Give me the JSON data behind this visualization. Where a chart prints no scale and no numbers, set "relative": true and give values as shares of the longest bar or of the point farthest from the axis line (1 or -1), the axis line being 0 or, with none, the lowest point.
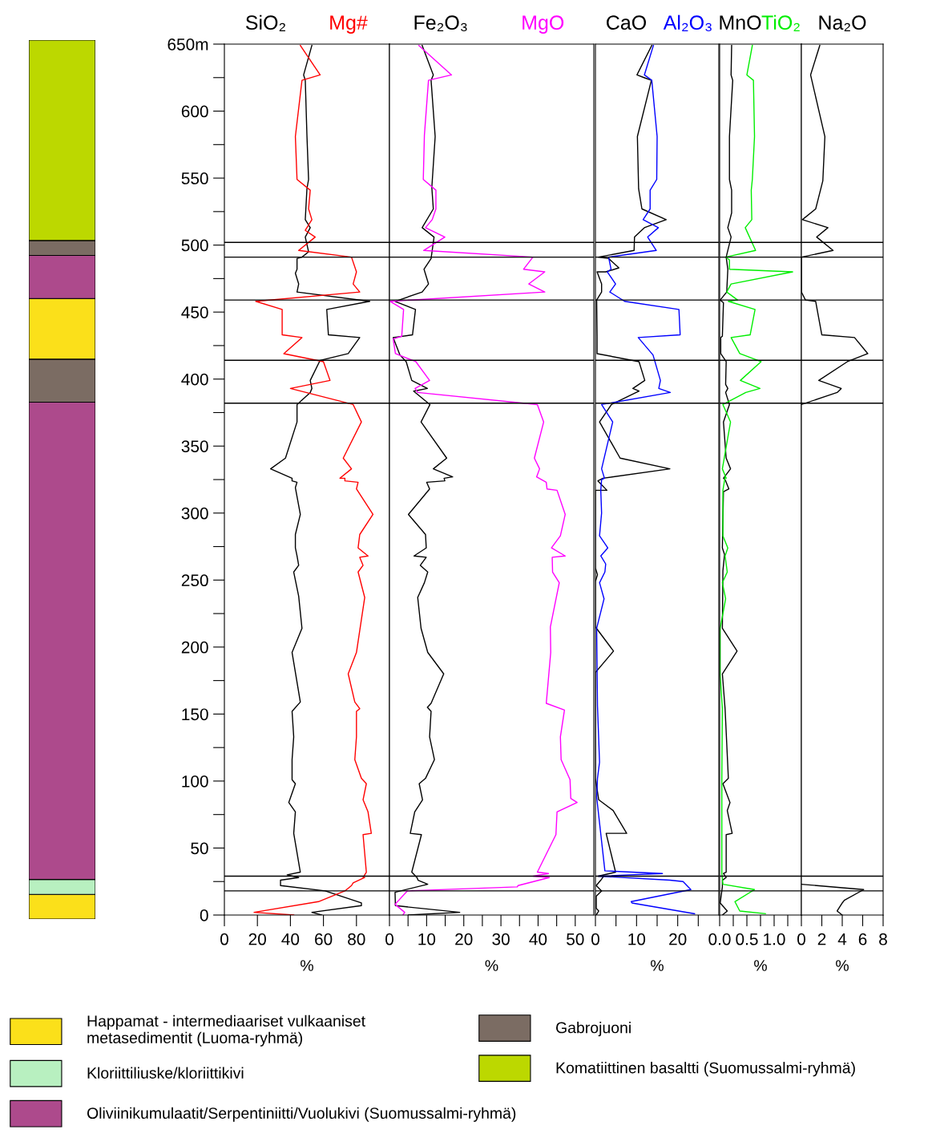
{
  "chart_data": [
    {
      "type": "bar",
      "stacked": true,
      "relative": true,
      "categories": [
        null
      ],
      "tick_labels": false,
      "legend": "bottom",
      "series": [
        {
          "name": "Happamat - intermediaariset vulkaaniset\nmetasedimentit (Luoma-ryhmä)",
          "color": "#fbe01a",
          "values": [
            0.028
          ]
        },
        {
          "name": "Kloriittiliuske/kloriittikivi",
          "color": "#b8f0c0",
          "values": [
            0.017
          ]
        },
        {
          "name": "Oliviinikumulaatit/Serpentiniitti/Vuolukivi (Suomussalmi-ryhmä)",
          "color": "#ad4a8c",
          "values": [
            0.543
          ]
        },
        {
          "name": "Gabrojuoni",
          "color": "#7b6c63",
          "values": [
            0.049
          ]
        },
        {
          "color": "#fbe01a",
          "values": [
            0.069
          ]
        },
        {
          "color": "#ad4a8c",
          "values": [
            0.049
          ]
        },
        {
          "color": "#7b6c63",
          "values": [
            0.017
          ]
        },
        {
          "name": "Komatiittinen basaltti (Suomussalmi-ryhmä)",
          "color": "#bcd800",
          "values": [
            0.228
          ]
        }
      ]
    },
    {
      "type": "line",
      "xlabel": "%",
      "xlim": [
        0,
        100
      ],
      "ylim": [
        0,
        650
      ],
      "xticks": [
        0,
        20,
        40,
        60,
        80
      ],
      "yticks": [
        0,
        {
          "value": 25,
          "label": null
        },
        50,
        {
          "value": 75,
          "label": null
        },
        100,
        {
          "value": 125,
          "label": null
        },
        150,
        {
          "value": 175,
          "label": null
        },
        200,
        {
          "value": 225,
          "label": null
        },
        250,
        {
          "value": 275,
          "label": null
        },
        300,
        {
          "value": 325,
          "label": null
        },
        350,
        {
          "value": 375,
          "label": null
        },
        400,
        {
          "value": 425,
          "label": null
        },
        450,
        {
          "value": 475,
          "label": null
        },
        500,
        {
          "value": 525,
          "label": null
        },
        550,
        {
          "value": 575,
          "label": null
        },
        600,
        {
          "value": 625,
          "label": null
        },
        {
          "value": 650,
          "label": "650m"
        }
      ],
      "ref_lines": [
        {
          "axis": "y",
          "value": 18,
          "color": "#000000"
        },
        {
          "axis": "y",
          "value": 29,
          "color": "#000000"
        },
        {
          "axis": "y",
          "value": 382,
          "color": "#000000"
        },
        {
          "axis": "y",
          "value": 414,
          "color": "#000000"
        },
        {
          "axis": "y",
          "value": 459,
          "color": "#000000"
        },
        {
          "axis": "y",
          "value": 491,
          "color": "#000000"
        },
        {
          "axis": "y",
          "value": 502,
          "color": "#000000"
        }
      ],
      "series": [
        {
          "name": "SiO₂",
          "color": "#000000",
          "x": [
            53,
            48,
            49,
            50,
            51,
            50,
            49,
            52,
            49,
            51,
            47,
            44,
            44,
            43,
            45,
            44,
            88,
            62,
            63,
            82,
            75,
            58,
            52,
            53,
            52,
            44,
            44,
            37,
            28,
            41,
            41,
            44,
            43,
            46,
            43,
            43,
            44,
            45,
            42,
            45,
            47,
            41,
            46,
            41,
            42,
            41,
            41,
            43,
            39,
            43,
            42,
            42,
            46,
            38,
            45,
            34,
            34,
            61,
            83,
            83,
            53,
            59
          ],
          "values": [
            649,
            627,
            623,
            582,
            549,
            542,
            519,
            513,
            506,
            495,
            491,
            490,
            482,
            479,
            471,
            465,
            458,
            452,
            433,
            431,
            419,
            414,
            399,
            393,
            390,
            381,
            368,
            341,
            333,
            326,
            324,
            323,
            319,
            299,
            284,
            274,
            268,
            261,
            256,
            238,
            214,
            196,
            159,
            152,
            133,
            116,
            101,
            98,
            84,
            77,
            61,
            61,
            32,
            30,
            28,
            26,
            22,
            18,
            9,
            7,
            2,
            0
          ]
        },
        {
          "name": "Mg#",
          "color": "#ff0000",
          "x": [
            46,
            58,
            47,
            43,
            44,
            52,
            51,
            53,
            49,
            55,
            45,
            77,
            80,
            78,
            82,
            19,
            35,
            35,
            47,
            36,
            60,
            64,
            40,
            78,
            83,
            72,
            77,
            70,
            73,
            73,
            81,
            80,
            90,
            82,
            81,
            87,
            82,
            84,
            81,
            85,
            80,
            75,
            79,
            82,
            80,
            80,
            79,
            83,
            86,
            84,
            87,
            89,
            84,
            86,
            84,
            85,
            78,
            77,
            73,
            57,
            18,
            42
          ],
          "values": [
            649,
            627,
            623,
            581,
            549,
            541,
            527,
            519,
            511,
            506,
            496,
            491,
            480,
            471,
            465,
            458,
            452,
            433,
            431,
            419,
            413,
            399,
            393,
            381,
            368,
            341,
            333,
            326,
            326,
            324,
            323,
            318,
            299,
            284,
            274,
            268,
            267,
            261,
            256,
            237,
            196,
            180,
            159,
            154,
            152,
            133,
            116,
            102,
            98,
            86,
            77,
            61,
            60,
            32,
            28,
            28,
            24,
            22,
            18,
            10,
            2,
            0
          ]
        }
      ]
    },
    {
      "type": "line",
      "xlabel": "%",
      "xlim": [
        0,
        55
      ],
      "ylim": [
        0,
        650
      ],
      "tick_labels": "x",
      "xticks": [
        0,
        {
          "value": 5,
          "label": null
        },
        10,
        {
          "value": 15,
          "label": null
        },
        20,
        {
          "value": 25,
          "label": null
        },
        30,
        {
          "value": 35,
          "label": null
        },
        40,
        {
          "value": 45,
          "label": null
        },
        50
      ],
      "ref_lines": [
        {
          "axis": "y",
          "value": 18,
          "color": "#000000"
        },
        {
          "axis": "y",
          "value": 29,
          "color": "#000000"
        },
        {
          "axis": "y",
          "value": 382,
          "color": "#000000"
        },
        {
          "axis": "y",
          "value": 414,
          "color": "#000000"
        },
        {
          "axis": "y",
          "value": 459,
          "color": "#000000"
        },
        {
          "axis": "y",
          "value": 491,
          "color": "#000000"
        },
        {
          "axis": "y",
          "value": 502,
          "color": "#000000"
        }
      ],
      "series": [
        {
          "name": "Fe₂O₃",
          "color": "#000000",
          "x": [
            8.8,
            11.8,
            11.2,
            12.3,
            11.4,
            11.8,
            8.8,
            12.0,
            11.2,
            9.3,
            10.5,
            8.8,
            1.5,
            7.0,
            6.2,
            1.0,
            2.8,
            4.5,
            6.0,
            10.2,
            6.5,
            10.9,
            8.5,
            15.4,
            11.8,
            17.0,
            14.7,
            14.9,
            10.0,
            10.8,
            5.1,
            9.7,
            9.9,
            6.6,
            9.9,
            8.3,
            10.3,
            9.4,
            7.6,
            8.5,
            10.3,
            14.6,
            11.2,
            10.2,
            11.2,
            10.8,
            12.1,
            9.7,
            8.0,
            8.9,
            6.8,
            5.6,
            8.6,
            6.0,
            7.4,
            7.7,
            10.3,
            1.5,
            1.6,
            18.9,
            5.1
          ],
          "values": [
            649,
            627,
            623,
            581,
            543,
            527,
            513,
            506,
            490,
            482,
            471,
            465,
            458,
            452,
            433,
            431,
            418,
            413,
            399,
            393,
            391,
            381,
            368,
            341,
            333,
            327,
            326,
            324,
            323,
            318,
            299,
            284,
            274,
            268,
            267,
            261,
            256,
            248,
            237,
            214,
            196,
            180,
            158,
            155,
            152,
            133,
            116,
            102,
            98,
            86,
            77,
            61,
            60,
            32,
            28,
            26,
            23,
            17,
            7,
            2,
            0
          ]
        },
        {
          "name": "MgO",
          "color": "#ff00ff",
          "x": [
            7.9,
            16.7,
            10.5,
            9.4,
            9.1,
            12.5,
            12.5,
            11.5,
            9.7,
            14.9,
            9.2,
            38.6,
            36.1,
            41.8,
            37.5,
            41.8,
            0.2,
            3.8,
            3.3,
            1.0,
            1.6,
            7.1,
            10.8,
            6.9,
            7.6,
            39.8,
            41.5,
            39.0,
            40.4,
            39.6,
            42.2,
            42.4,
            45.1,
            47.3,
            46.0,
            43.6,
            47.3,
            43.8,
            43.9,
            45.7,
            43.3,
            43.4,
            42.2,
            47.1,
            46.0,
            46.2,
            48.6,
            48.8,
            50.5,
            45.1,
            44.8,
            39.8,
            42.8,
            38.7,
            43.0,
            34.6,
            34.4,
            4.8,
            1.5,
            4.1,
            3.6
          ],
          "values": [
            649,
            627,
            623,
            582,
            549,
            541,
            527,
            519,
            513,
            506,
            496,
            491,
            482,
            480,
            471,
            465,
            458,
            452,
            432,
            430,
            419,
            413,
            399,
            393,
            390,
            381,
            368,
            341,
            333,
            327,
            323,
            318,
            317,
            299,
            283,
            274,
            268,
            267,
            256,
            248,
            215,
            196,
            158,
            153,
            133,
            116,
            101,
            87,
            84,
            77,
            60,
            32,
            31,
            29,
            28,
            22,
            21,
            18,
            8,
            2,
            0
          ]
        }
      ]
    },
    {
      "type": "line",
      "xlabel": "%",
      "xlim": [
        0,
        30
      ],
      "ylim": [
        0,
        650
      ],
      "tick_labels": "x",
      "xticks": [
        0,
        {
          "value": 5,
          "label": null
        },
        10,
        {
          "value": 15,
          "label": null
        },
        20,
        {
          "value": 25,
          "label": null
        }
      ],
      "ref_lines": [
        {
          "axis": "y",
          "value": 18,
          "color": "#000000"
        },
        {
          "axis": "y",
          "value": 29,
          "color": "#000000"
        },
        {
          "axis": "y",
          "value": 382,
          "color": "#000000"
        },
        {
          "axis": "y",
          "value": 414,
          "color": "#000000"
        },
        {
          "axis": "y",
          "value": 459,
          "color": "#000000"
        },
        {
          "axis": "y",
          "value": 491,
          "color": "#000000"
        },
        {
          "axis": "y",
          "value": 502,
          "color": "#000000"
        }
      ],
      "series": [
        {
          "name": "CaO",
          "color": "#000000",
          "x": [
            13.7,
            10.1,
            11.8,
            13.6,
            10.2,
            10.5,
            11.3,
            17.2,
            11.9,
            9.5,
            9.4,
            0.7,
            3.2,
            5.7,
            2.5,
            0.4,
            1.5,
            1.5,
            0.3,
            0.4,
            0.4,
            10.6,
            12.0,
            9.1,
            10.6,
            3.9,
            1.0,
            6.0,
            18.1,
            1.8,
            0.6,
            2.8,
            0,
            0,
            0.5,
            0,
            0,
            4.4,
            0,
            0,
            0.8,
            4.3,
            7.6,
            2.6,
            4.9,
            0.7,
            2.0,
            1.3,
            0.2,
            1.5,
            0.2,
            0.2,
            0.8,
            0.2
          ],
          "values": [
            649,
            627,
            625,
            623,
            581,
            542,
            527,
            519,
            513,
            506,
            496,
            491,
            490,
            483,
            480,
            480,
            471,
            465,
            459,
            432,
            419,
            413,
            399,
            393,
            391,
            381,
            368,
            341,
            333,
            326,
            324,
            317,
            317,
            259,
            254,
            249,
            215,
            197,
            181,
            102,
            86,
            78,
            61,
            61,
            32,
            29,
            29,
            26,
            22,
            18,
            14,
            5,
            3,
            0
          ]
        },
        {
          "name": "Al₂O₃",
          "color": "#0000ff",
          "x": [
            14.1,
            11.9,
            13.7,
            15.0,
            14.9,
            13.3,
            13.3,
            11.6,
            15.3,
            12.7,
            14.8,
            3.2,
            3.8,
            2.9,
            4.9,
            3.5,
            7.1,
            20.3,
            20.6,
            10.4,
            14.0,
            15.8,
            15.4,
            18.2,
            1.5,
            4.2,
            1.5,
            2.2,
            1.5,
            1.3,
            1.5,
            1.0,
            3.0,
            1.3,
            2.5,
            2.3,
            1.0,
            2.1,
            0.3,
            0.5,
            1.0,
            0.5,
            0.3,
            2.3,
            16.3,
            0.7,
            18.1,
            21.3,
            23.2,
            8.7,
            8.9,
            24.1
          ],
          "values": [
            649,
            627,
            623,
            581,
            549,
            541,
            527,
            519,
            513,
            506,
            496,
            491,
            482,
            480,
            471,
            465,
            458,
            452,
            433,
            431,
            418,
            399,
            393,
            390,
            381,
            368,
            333,
            326,
            325,
            317,
            300,
            283,
            274,
            268,
            262,
            256,
            248,
            236,
            214,
            156,
            114,
            102,
            88,
            33,
            31,
            29,
            26,
            25,
            19,
            10,
            9,
            1
          ]
        }
      ]
    },
    {
      "type": "line",
      "xlabel": "%",
      "xlim": [
        0,
        1.5
      ],
      "ylim": [
        0,
        650
      ],
      "tick_labels": "x",
      "xticks": [
        {
          "value": 0,
          "label": "0.0"
        },
        {
          "value": 0.25,
          "label": null
        },
        0.5,
        {
          "value": 0.75,
          "label": null
        },
        {
          "value": 1,
          "label": "1.0"
        },
        {
          "value": 1.25,
          "label": null
        }
      ],
      "ref_lines": [
        {
          "axis": "y",
          "value": 18,
          "color": "#000000"
        },
        {
          "axis": "y",
          "value": 29,
          "color": "#000000"
        },
        {
          "axis": "y",
          "value": 382,
          "color": "#000000"
        },
        {
          "axis": "y",
          "value": 414,
          "color": "#000000"
        },
        {
          "axis": "y",
          "value": 459,
          "color": "#000000"
        },
        {
          "axis": "y",
          "value": 491,
          "color": "#000000"
        },
        {
          "axis": "y",
          "value": 502,
          "color": "#000000"
        }
      ],
      "series": [
        {
          "name": "MnO",
          "color": "#000000",
          "x": [
            0.22,
            0.21,
            0.24,
            0.18,
            0.18,
            0.22,
            0.22,
            0.15,
            0.21,
            0.12,
            0.15,
            0.13,
            0.01,
            0.07,
            0.05,
            0.02,
            0.02,
            0.12,
            0.11,
            0.15,
            0.11,
            0.18,
            0.07,
            0.12,
            0.2,
            0.07,
            0.1,
            0.17,
            0.07,
            0.05,
            0.09,
            0.06,
            0.05,
            0.32,
            0.05,
            0.1,
            0.16,
            0.06,
            0.19,
            0.14,
            0.23,
            0.12,
            0.12,
            0.07,
            0.12,
            0.05,
            0.05,
            0.01,
            0.14,
            0.05
          ],
          "values": [
            649,
            627,
            623,
            581,
            549,
            541,
            524,
            513,
            506,
            491,
            482,
            465,
            459,
            457,
            432,
            431,
            419,
            413,
            396,
            393,
            390,
            381,
            368,
            341,
            333,
            326,
            325,
            318,
            316,
            274,
            269,
            257,
            214,
            197,
            180,
            154,
            102,
            98,
            84,
            78,
            61,
            60,
            32,
            31,
            28,
            26,
            21,
            9,
            3,
            0
          ]
        },
        {
          "name": "TiO₂",
          "color": "#00ee00",
          "x": [
            0.6,
            0.5,
            0.62,
            0.64,
            0.6,
            0.58,
            0.59,
            0.47,
            0.66,
            0.11,
            0.18,
            0.18,
            1.34,
            0.21,
            0.13,
            0.33,
            0.16,
            0.65,
            0.56,
            0.21,
            0.37,
            0.76,
            0.38,
            0.74,
            0.48,
            0.06,
            0.2,
            0.05,
            0.12,
            0.1,
            0.06,
            0.06,
            0.15,
            0.1,
            0.14,
            0.05,
            0.11,
            0.01,
            0.01,
            0.05,
            0.04,
            0.04,
            0.06,
            0.64,
            0.28,
            0.37,
            0.84
          ],
          "values": [
            649,
            627,
            623,
            581,
            549,
            541,
            519,
            513,
            496,
            491,
            489,
            482,
            480,
            471,
            465,
            459,
            458,
            452,
            433,
            431,
            419,
            413,
            399,
            393,
            390,
            381,
            368,
            333,
            326,
            327,
            317,
            283,
            274,
            268,
            256,
            248,
            236,
            214,
            179,
            154,
            102,
            31,
            23,
            19,
            10,
            3,
            1
          ]
        }
      ]
    },
    {
      "type": "line",
      "xlabel": "%",
      "xlim": [
        0,
        8
      ],
      "ylim": [
        0,
        650
      ],
      "tick_labels": "x",
      "xticks": [
        0,
        2,
        4,
        6,
        8
      ],
      "ref_lines": [
        {
          "axis": "y",
          "value": 18,
          "color": "#000000"
        },
        {
          "axis": "y",
          "value": 29,
          "color": "#000000"
        },
        {
          "axis": "y",
          "value": 382,
          "color": "#000000"
        },
        {
          "axis": "y",
          "value": 414,
          "color": "#000000"
        },
        {
          "axis": "y",
          "value": 459,
          "color": "#000000"
        },
        {
          "axis": "y",
          "value": 491,
          "color": "#000000"
        },
        {
          "axis": "y",
          "value": 502,
          "color": "#000000"
        }
      ],
      "series": [
        {
          "name": "Na₂O",
          "color": "#000000",
          "x": [
            1.8,
            0.9,
            2.3,
            2.1,
            1.4,
            0.1,
            2.6,
            1.5,
            3.1,
            0,
            0,
            0.4,
            1.4,
            2.0,
            5.2,
            6.5,
            4.5,
            1.7,
            3.9,
            3.5,
            0,
            null,
            0,
            6.1,
            4.2,
            4.0,
            3.5,
            4.0
          ],
          "values": [
            649,
            627,
            581,
            548,
            527,
            519,
            513,
            506,
            496,
            491,
            465,
            459,
            458,
            433,
            431,
            419,
            413,
            399,
            393,
            390,
            381,
            null,
            23,
            19,
            11,
            9,
            3,
            0
          ]
        }
      ]
    }
  ]
}
